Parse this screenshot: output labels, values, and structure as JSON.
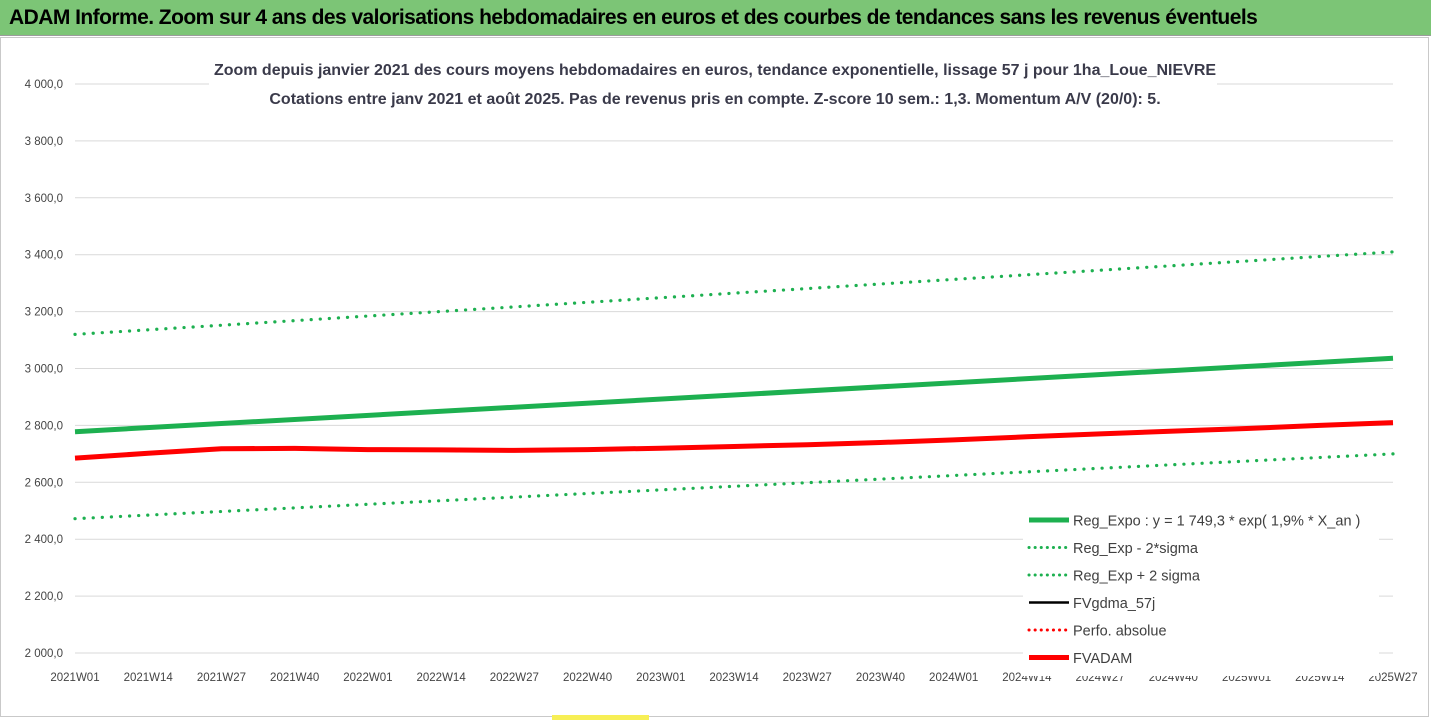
{
  "banner": {
    "title": "ADAM Informe. Zoom sur 4 ans des valorisations hebdomadaires en euros et des courbes de tendances sans les revenus éventuels",
    "background": "#7cc576"
  },
  "chart_data": {
    "type": "line",
    "title": "Zoom depuis janvier 2021 des cours moyens hebdomadaires en euros, tendance exponentielle, lissage 57 j pour 1ha_Loue_NIEVRE",
    "subtitle": "Cotations entre janv 2021 et août 2025.  Pas de revenus pris en compte. Z-score 10 sem.: 1,3. Momentum A/V (20/0): 5.",
    "xlabel": "",
    "ylabel": "",
    "ylim": [
      2000,
      4000
    ],
    "y_ticks": [
      "4 000,0",
      "3 800,0",
      "3 600,0",
      "3 400,0",
      "3 200,0",
      "3 000,0",
      "2 800,0",
      "2 600,0",
      "2 400,0",
      "2 200,0",
      "2 000,0"
    ],
    "x_ticks": [
      "2021W01",
      "2021W14",
      "2021W27",
      "2021W40",
      "2022W01",
      "2022W14",
      "2022W27",
      "2022W40",
      "2023W01",
      "2023W14",
      "2023W27",
      "2023W40",
      "2024W01",
      "2024W14",
      "2024W27",
      "2024W40",
      "2025W01",
      "2025W14",
      "2025W27"
    ],
    "grid": "horizontal",
    "legend_position": "bottom-right",
    "series": [
      {
        "name": "Reg_Expo : y = 1 749,3 * exp( 1,9% *  X_an )",
        "color": "#1db050",
        "style": "solid-thick",
        "x_weeks": [
          0,
          234
        ],
        "values": [
          2778,
          3036
        ]
      },
      {
        "name": "Reg_Exp - 2*sigma",
        "color": "#1db050",
        "style": "dotted",
        "x_weeks": [
          0,
          234
        ],
        "values": [
          2472,
          2700
        ]
      },
      {
        "name": "Reg_Exp + 2 sigma",
        "color": "#1db050",
        "style": "dotted",
        "x_weeks": [
          0,
          234
        ],
        "values": [
          3120,
          3410
        ]
      },
      {
        "name": "FVgdma_57j",
        "color": "#000000",
        "style": "solid",
        "x_weeks": [],
        "values": []
      },
      {
        "name": "Perfo. absolue",
        "color": "#ff0000",
        "style": "dotted",
        "x_weeks": [],
        "values": []
      },
      {
        "name": "FVADAM",
        "color": "#ff0000",
        "style": "solid-thick",
        "x_weeks": [
          0,
          13,
          26,
          39,
          52,
          65,
          78,
          91,
          104,
          117,
          130,
          143,
          156,
          169,
          182,
          195,
          208,
          221,
          234
        ],
        "values": [
          2685,
          2702,
          2718,
          2719,
          2715,
          2714,
          2712,
          2715,
          2720,
          2726,
          2732,
          2740,
          2749,
          2760,
          2770,
          2780,
          2789,
          2800,
          2810
        ]
      }
    ]
  }
}
